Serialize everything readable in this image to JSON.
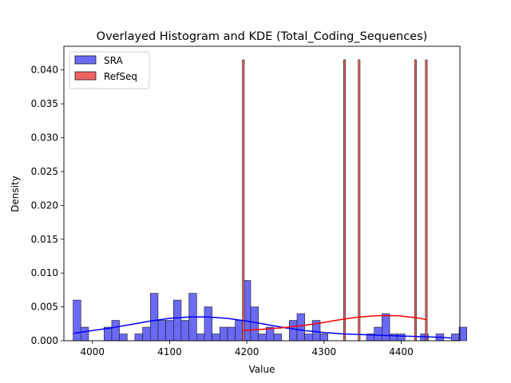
{
  "chart_data": {
    "type": "bar",
    "title": "Overlayed Histogram and KDE (Total_Coding_Sequences)",
    "xlabel": "Value",
    "ylabel": "Density",
    "xlim": [
      3963,
      4476
    ],
    "ylim": [
      0,
      0.0435
    ],
    "x_ticks": [
      4000,
      4100,
      4200,
      4300,
      4400
    ],
    "y_ticks": [
      0.0,
      0.005,
      0.01,
      0.015,
      0.02,
      0.025,
      0.03,
      0.035,
      0.04
    ],
    "y_tick_labels": [
      "0.000",
      "0.005",
      "0.010",
      "0.015",
      "0.020",
      "0.025",
      "0.030",
      "0.035",
      "0.040"
    ],
    "legend": {
      "placement": "top-left",
      "entries": [
        "SRA",
        "RefSeq"
      ]
    },
    "series": [
      {
        "name": "SRA",
        "color": "#0000ff",
        "fill_color": "#6a6af5",
        "bin_width": 10,
        "bin_start": 3975,
        "values": [
          0.006,
          0.002,
          0,
          0,
          0.002,
          0.003,
          0.001,
          0,
          0.001,
          0.002,
          0.007,
          0.003,
          0.003,
          0.006,
          0.003,
          0.007,
          0.001,
          0.005,
          0.001,
          0.002,
          0.002,
          0.003,
          0.0089,
          0.005,
          0.001,
          0.002,
          0.001,
          0,
          0.003,
          0.004,
          0.001,
          0.003,
          0.001,
          0,
          0,
          0,
          0,
          0,
          0.001,
          0.002,
          0.004,
          0.001,
          0.001,
          0,
          0,
          0.001,
          0,
          0.001,
          0,
          0.001,
          0.002
        ],
        "kde_x": [
          3975,
          4000,
          4025,
          4050,
          4075,
          4100,
          4125,
          4150,
          4175,
          4200,
          4225,
          4250,
          4275,
          4300,
          4325,
          4350,
          4375,
          4400,
          4425,
          4450,
          4465
        ],
        "kde_y": [
          0.0011,
          0.0015,
          0.0019,
          0.0024,
          0.0029,
          0.0033,
          0.0035,
          0.0035,
          0.0033,
          0.0029,
          0.0024,
          0.0019,
          0.0015,
          0.0012,
          0.001,
          0.0009,
          0.0008,
          0.0007,
          0.0006,
          0.0005,
          0.0004
        ]
      },
      {
        "name": "RefSeq",
        "color": "#ff0000",
        "fill_color": "#f26161",
        "bin_width": 2.4,
        "bars": [
          {
            "x": 4195.5,
            "value": 0.0415
          },
          {
            "x": 4326.5,
            "value": 0.0415
          },
          {
            "x": 4345.5,
            "value": 0.0415
          },
          {
            "x": 4418.5,
            "value": 0.0415
          },
          {
            "x": 4432.5,
            "value": 0.0415
          }
        ],
        "kde_x": [
          4195,
          4220,
          4245,
          4270,
          4295,
          4320,
          4345,
          4370,
          4395,
          4420,
          4433
        ],
        "kde_y": [
          0.0015,
          0.0017,
          0.0019,
          0.0022,
          0.0026,
          0.0031,
          0.0035,
          0.0037,
          0.0037,
          0.0034,
          0.0031
        ]
      }
    ]
  }
}
